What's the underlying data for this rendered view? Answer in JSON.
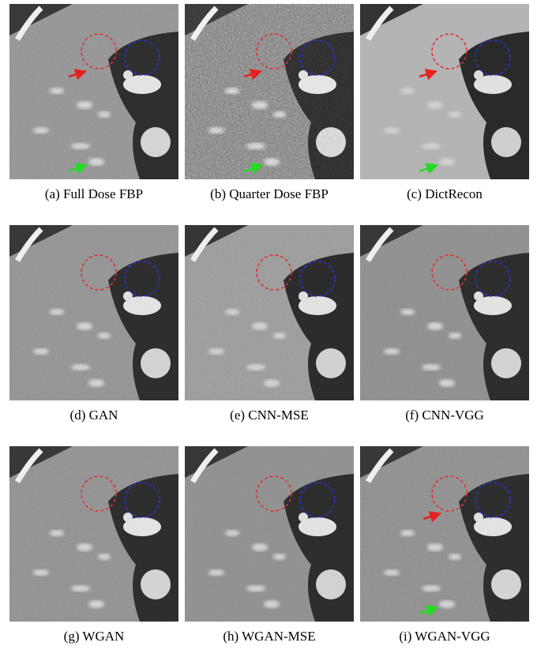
{
  "panels": [
    {
      "caption": "(a) Full Dose FBP"
    },
    {
      "caption": "(b) Quarter Dose FBP"
    },
    {
      "caption": "(c) DictRecon"
    },
    {
      "caption": "(d) GAN"
    },
    {
      "caption": "(e) CNN-MSE"
    },
    {
      "caption": "(f) CNN-VGG"
    },
    {
      "caption": "(g) WGAN"
    },
    {
      "caption": "(h) WGAN-MSE"
    },
    {
      "caption": "(i) WGAN-VGG"
    }
  ]
}
